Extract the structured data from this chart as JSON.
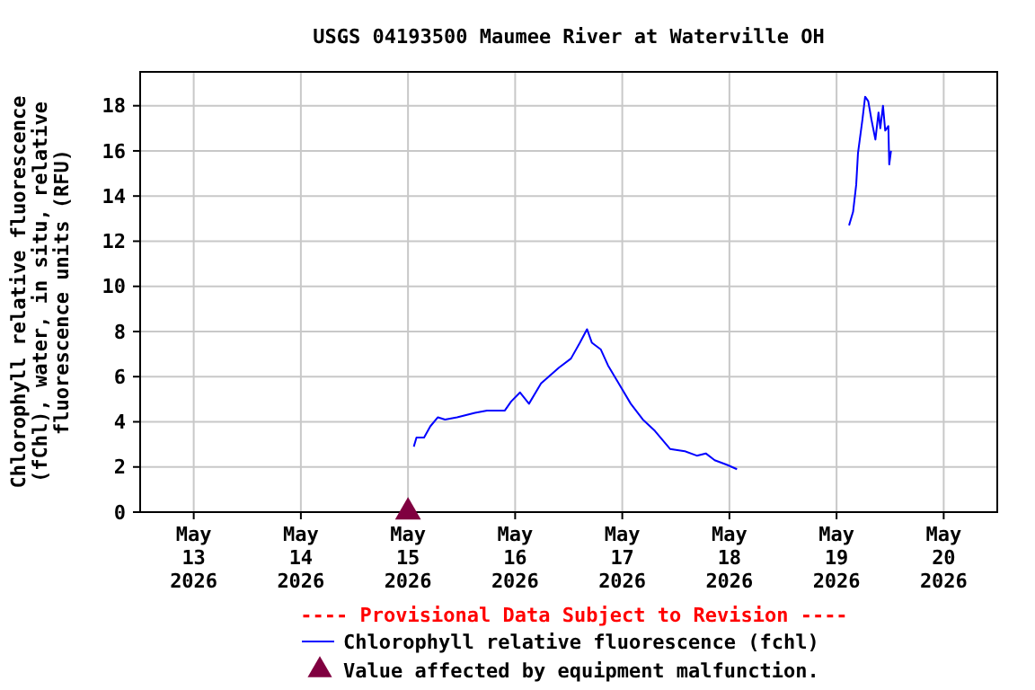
{
  "chart_data": {
    "type": "line",
    "title": "USGS 04193500 Maumee River at Waterville OH",
    "ylabel": "Chlorophyll relative fluorescence\n(fChl), water, in situ, relative\nfluorescence units (RFU)",
    "xlim": [
      "2026-05-12T12:00",
      "2026-05-20T12:00"
    ],
    "xticks": [
      {
        "value": "2026-05-13",
        "label": "May\n13\n2026"
      },
      {
        "value": "2026-05-14",
        "label": "May\n14\n2026"
      },
      {
        "value": "2026-05-15",
        "label": "May\n15\n2026"
      },
      {
        "value": "2026-05-16",
        "label": "May\n16\n2026"
      },
      {
        "value": "2026-05-17",
        "label": "May\n17\n2026"
      },
      {
        "value": "2026-05-18",
        "label": "May\n18\n2026"
      },
      {
        "value": "2026-05-19",
        "label": "May\n19\n2026"
      },
      {
        "value": "2026-05-20",
        "label": "May\n20\n2026"
      }
    ],
    "ylim": [
      0,
      19.5
    ],
    "yticks": [
      0,
      2,
      4,
      6,
      8,
      10,
      12,
      14,
      16,
      18
    ],
    "grid": true,
    "legend": "bottom",
    "annotations": [
      "---- Provisional Data Subject to Revision ----"
    ],
    "series": [
      {
        "name": "Chlorophyll relative fluorescence (fchl)",
        "color": "#0000ff",
        "marker": "none",
        "line_style": "solid",
        "x": [
          "2026-05-15T01:18",
          "2026-05-15T01:54",
          "2026-05-15T03:36",
          "2026-05-15T05:00",
          "2026-05-15T06:42",
          "2026-05-15T08:18",
          "2026-05-15T11:00",
          "2026-05-15T15:00",
          "2026-05-15T17:42",
          "2026-05-15T21:42",
          "2026-05-15T23:06",
          "2026-05-16T01:06",
          "2026-05-16T03:06",
          "2026-05-16T05:48",
          "2026-05-16T09:48",
          "2026-05-16T12:30",
          "2026-05-16T14:30",
          "2026-05-16T16:06",
          "2026-05-16T17:12",
          "2026-05-16T19:12",
          "2026-05-16T20:48",
          "2026-05-16T23:12",
          "2026-05-17T01:54",
          "2026-05-17T04:36",
          "2026-05-17T07:18",
          "2026-05-17T10:42",
          "2026-05-17T14:00",
          "2026-05-17T16:42",
          "2026-05-17T18:42",
          "2026-05-17T20:42",
          "2026-05-17T23:24",
          "2026-05-18T01:42",
          "2026-05-18T12:00",
          "2026-05-19T02:48",
          "2026-05-19T03:42",
          "2026-05-19T04:24",
          "2026-05-19T04:48",
          "2026-05-19T05:48",
          "2026-05-19T06:24",
          "2026-05-19T07:06",
          "2026-05-19T07:48",
          "2026-05-19T08:42",
          "2026-05-19T09:24",
          "2026-05-19T09:48",
          "2026-05-19T10:24",
          "2026-05-19T10:54",
          "2026-05-19T11:36",
          "2026-05-19T11:48",
          "2026-05-19T12:12"
        ],
        "values": [
          2.9,
          3.3,
          3.3,
          3.8,
          4.2,
          4.1,
          4.2,
          4.4,
          4.5,
          4.5,
          4.9,
          5.3,
          4.8,
          5.7,
          6.4,
          6.8,
          7.5,
          8.1,
          7.5,
          7.2,
          6.5,
          5.7,
          4.8,
          4.1,
          3.6,
          2.8,
          2.7,
          2.5,
          2.6,
          2.3,
          2.1,
          1.9,
          null,
          12.7,
          13.3,
          14.5,
          15.9,
          17.4,
          18.4,
          18.2,
          17.4,
          16.5,
          17.7,
          17.0,
          18.0,
          16.9,
          17.1,
          15.4,
          16.0
        ]
      },
      {
        "name": "Value affected by equipment malfunction.",
        "type": "scatter",
        "color": "#800040",
        "marker": "triangle",
        "x": [
          "2026-05-15"
        ],
        "values": [
          0
        ]
      }
    ]
  }
}
